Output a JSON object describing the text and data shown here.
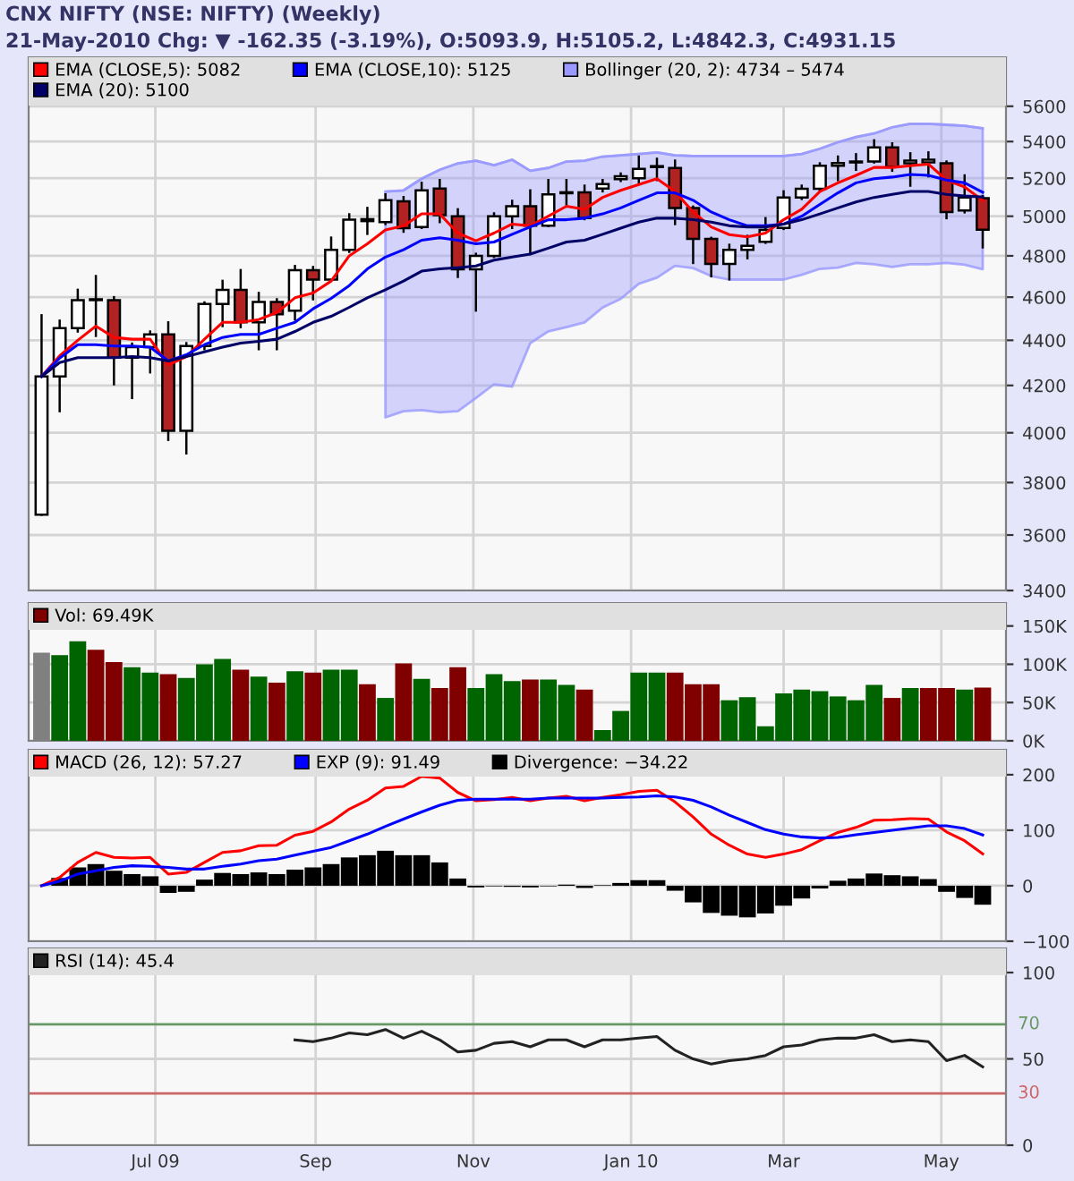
{
  "chart_data": [
    {
      "type": "candlestick",
      "title": "CNX NIFTY (NSE: NIFTY) (Weekly)",
      "subtitle": "21-May-2010 Chg: ▼ -162.35 (-3.19%), O:5093.9, H:5105.2, L:4842.3, C:4931.15",
      "x": [
        "2009-05-18",
        "2009-05-25",
        "2009-06-01",
        "2009-06-08",
        "2009-06-15",
        "2009-06-22",
        "2009-06-29",
        "2009-07-06",
        "2009-07-13",
        "2009-07-20",
        "2009-07-27",
        "2009-08-03",
        "2009-08-10",
        "2009-08-17",
        "2009-08-24",
        "2009-08-31",
        "2009-09-07",
        "2009-09-14",
        "2009-09-21",
        "2009-09-28",
        "2009-10-05",
        "2009-10-12",
        "2009-10-19",
        "2009-10-26",
        "2009-11-02",
        "2009-11-09",
        "2009-11-16",
        "2009-11-23",
        "2009-11-30",
        "2009-12-07",
        "2009-12-14",
        "2009-12-21",
        "2009-12-28",
        "2010-01-04",
        "2010-01-11",
        "2010-01-18",
        "2010-01-25",
        "2010-02-01",
        "2010-02-08",
        "2010-02-15",
        "2010-02-22",
        "2010-03-01",
        "2010-03-08",
        "2010-03-15",
        "2010-03-22",
        "2010-03-29",
        "2010-04-05",
        "2010-04-12",
        "2010-04-19",
        "2010-04-26",
        "2010-05-03",
        "2010-05-10",
        "2010-05-17"
      ],
      "ohlc": [
        [
          3676,
          4515,
          3676,
          4239
        ],
        [
          4239,
          4490,
          4090,
          4455
        ],
        [
          4455,
          4635,
          4440,
          4586
        ],
        [
          4586,
          4701,
          4420,
          4590
        ],
        [
          4586,
          4600,
          4205,
          4322
        ],
        [
          4322,
          4385,
          4146,
          4369
        ],
        [
          4369,
          4440,
          4257,
          4427
        ],
        [
          4427,
          4482,
          3971,
          4008
        ],
        [
          4008,
          4387,
          3916,
          4374
        ],
        [
          4374,
          4575,
          4360,
          4568
        ],
        [
          4568,
          4678,
          4465,
          4635
        ],
        [
          4635,
          4730,
          4460,
          4482
        ],
        [
          4482,
          4620,
          4360,
          4577
        ],
        [
          4577,
          4590,
          4360,
          4520
        ],
        [
          4536,
          4750,
          4495,
          4730
        ],
        [
          4730,
          4745,
          4590,
          4684
        ],
        [
          4684,
          4891,
          4680,
          4830
        ],
        [
          4830,
          5010,
          4820,
          4982
        ],
        [
          4985,
          5043,
          4910,
          4975
        ],
        [
          4970,
          5114,
          4960,
          5083
        ],
        [
          5077,
          5100,
          4921,
          4939
        ],
        [
          4945,
          5175,
          4940,
          5135
        ],
        [
          5145,
          5190,
          4970,
          5006
        ],
        [
          5000,
          5036,
          4697,
          4734
        ],
        [
          4734,
          4810,
          4537,
          4800
        ],
        [
          4800,
          5015,
          4795,
          5000
        ],
        [
          5000,
          5080,
          4940,
          5052
        ],
        [
          5052,
          5135,
          4809,
          4951
        ],
        [
          4951,
          5190,
          4950,
          5114
        ],
        [
          5120,
          5190,
          5050,
          5125
        ],
        [
          5125,
          5160,
          4985,
          4990
        ],
        [
          5145,
          5190,
          5130,
          5168
        ],
        [
          5195,
          5225,
          5185,
          5210
        ],
        [
          5200,
          5317,
          5175,
          5250
        ],
        [
          5260,
          5305,
          5190,
          5265
        ],
        [
          5255,
          5295,
          4960,
          5043
        ],
        [
          5043,
          5050,
          4765,
          4885
        ],
        [
          4885,
          4890,
          4700,
          4760
        ],
        [
          4760,
          4855,
          4685,
          4830
        ],
        [
          4830,
          4900,
          4788,
          4850
        ],
        [
          4870,
          4990,
          4865,
          4930
        ],
        [
          4940,
          5130,
          4935,
          5098
        ],
        [
          5098,
          5160,
          5090,
          5143
        ],
        [
          5143,
          5280,
          5135,
          5267
        ],
        [
          5267,
          5317,
          5190,
          5282
        ],
        [
          5285,
          5330,
          5245,
          5290
        ],
        [
          5290,
          5407,
          5285,
          5367
        ],
        [
          5367,
          5390,
          5240,
          5262
        ],
        [
          5280,
          5335,
          5160,
          5295
        ],
        [
          5285,
          5340,
          5210,
          5300
        ],
        [
          5280,
          5290,
          4990,
          5022
        ],
        [
          5030,
          5215,
          5020,
          5098
        ],
        [
          5093.9,
          5105.2,
          4842.3,
          4931.15
        ]
      ],
      "colors": [
        "#ffffff",
        "#ffffff",
        "#ffffff",
        "#ffffff",
        "#b22222",
        "#ffffff",
        "#ffffff",
        "#b22222",
        "#ffffff",
        "#ffffff",
        "#ffffff",
        "#b22222",
        "#ffffff",
        "#b22222",
        "#ffffff",
        "#b22222",
        "#ffffff",
        "#ffffff",
        "#b22222",
        "#ffffff",
        "#b22222",
        "#ffffff",
        "#b22222",
        "#b22222",
        "#ffffff",
        "#ffffff",
        "#ffffff",
        "#b22222",
        "#ffffff",
        "#ffffff",
        "#b22222",
        "#ffffff",
        "#ffffff",
        "#ffffff",
        "#ffffff",
        "#b22222",
        "#b22222",
        "#b22222",
        "#ffffff",
        "#ffffff",
        "#ffffff",
        "#ffffff",
        "#ffffff",
        "#ffffff",
        "#ffffff",
        "#ffffff",
        "#ffffff",
        "#b22222",
        "#ffffff",
        "#ffffff",
        "#b22222",
        "#ffffff",
        "#b22222"
      ],
      "series": [
        {
          "name": "EMA (CLOSE,5): 5082",
          "type": "line",
          "color": "#ff0000",
          "values": [
            4239,
            4330,
            4400,
            4465,
            4413,
            4405,
            4405,
            4290,
            4327,
            4405,
            4482,
            4482,
            4495,
            4528,
            4597,
            4620,
            4677,
            4800,
            4860,
            4930,
            4951,
            5012,
            5012,
            4914,
            4875,
            4914,
            4960,
            4951,
            5000,
            5052,
            5036,
            5098,
            5135,
            5166,
            5197,
            5129,
            5022,
            4945,
            4906,
            4895,
            4914,
            4982,
            5036,
            5129,
            5175,
            5215,
            5258,
            5258,
            5267,
            5276,
            5190,
            5153,
            5082
          ]
        },
        {
          "name": "EMA (CLOSE,10): 5125",
          "type": "line",
          "color": "#0000ff",
          "values": [
            4239,
            4320,
            4380,
            4380,
            4374,
            4374,
            4369,
            4307,
            4335,
            4380,
            4413,
            4427,
            4427,
            4455,
            4482,
            4545,
            4594,
            4655,
            4736,
            4794,
            4830,
            4878,
            4890,
            4878,
            4860,
            4869,
            4908,
            4945,
            4982,
            4982,
            4990,
            5012,
            5043,
            5083,
            5122,
            5122,
            5083,
            5022,
            4982,
            4951,
            4951,
            4960,
            5000,
            5061,
            5122,
            5175,
            5197,
            5206,
            5220,
            5215,
            5190,
            5175,
            5125
          ]
        },
        {
          "name": "Bollinger (20, 2): 4734 – 5474",
          "type": "line",
          "color": "#9999ff",
          "lower": [
            null,
            null,
            null,
            null,
            null,
            null,
            null,
            null,
            null,
            null,
            null,
            null,
            null,
            null,
            null,
            null,
            null,
            null,
            null,
            4064,
            4090,
            4095,
            4085,
            4090,
            4146,
            4205,
            4195,
            4387,
            4441,
            4460,
            4482,
            4551,
            4592,
            4664,
            4693,
            4751,
            4740,
            4701,
            4684,
            4684,
            4684,
            4684,
            4707,
            4736,
            4742,
            4765,
            4759,
            4745,
            4759,
            4759,
            4765,
            4756,
            4734
          ],
          "values": [
            null,
            null,
            null,
            null,
            null,
            null,
            null,
            null,
            null,
            null,
            null,
            null,
            null,
            null,
            null,
            null,
            null,
            null,
            null,
            5129,
            5135,
            5197,
            5245,
            5280,
            5294,
            5270,
            5300,
            5240,
            5255,
            5290,
            5294,
            5317,
            5324,
            5331,
            5340,
            5324,
            5320,
            5320,
            5320,
            5320,
            5320,
            5320,
            5331,
            5360,
            5396,
            5425,
            5445,
            5480,
            5500,
            5500,
            5494,
            5488,
            5474
          ],
          "upper": [
            null,
            null,
            null,
            null,
            null,
            null,
            null,
            null,
            null,
            null,
            null,
            null,
            null,
            null,
            null,
            null,
            null,
            null,
            null,
            5129,
            5135,
            5197,
            5245,
            5280,
            5294,
            5270,
            5300,
            5240,
            5255,
            5290,
            5294,
            5317,
            5324,
            5331,
            5340,
            5324,
            5320,
            5320,
            5320,
            5320,
            5320,
            5320,
            5331,
            5360,
            5396,
            5425,
            5445,
            5480,
            5500,
            5500,
            5494,
            5488,
            5474
          ]
        },
        {
          "name": "EMA (20): 5100",
          "type": "line",
          "color": "#000066",
          "values": [
            4239,
            4300,
            4322,
            4322,
            4322,
            4327,
            4322,
            4307,
            4327,
            4348,
            4369,
            4387,
            4395,
            4405,
            4440,
            4482,
            4510,
            4552,
            4597,
            4635,
            4677,
            4725,
            4736,
            4742,
            4750,
            4779,
            4794,
            4809,
            4838,
            4869,
            4878,
            4908,
            4939,
            4970,
            4990,
            4990,
            4982,
            4970,
            4951,
            4945,
            4945,
            4960,
            4982,
            5012,
            5043,
            5074,
            5098,
            5114,
            5129,
            5129,
            5114,
            5105,
            5100
          ]
        }
      ],
      "log": true,
      "ylim": [
        3400,
        5890
      ],
      "yticks": [
        3400,
        3600,
        3800,
        4000,
        4200,
        4400,
        4600,
        4800,
        5000,
        5200,
        5400,
        5600
      ],
      "xlim": [
        "2009-05-13",
        "2010-05-26"
      ],
      "xticks": [
        {
          "value": "2009-07-01",
          "label": null
        },
        {
          "value": "2009-09-01",
          "label": null
        },
        {
          "value": "2009-11-01",
          "label": null
        },
        {
          "value": "2010-01-01",
          "label": null
        },
        {
          "value": "2010-03-01",
          "label": null
        },
        {
          "value": "2010-05-01",
          "label": null
        }
      ],
      "grid": true,
      "legend": "top",
      "tick_labels": "y"
    },
    {
      "type": "bar",
      "x": [
        "2009-05-18",
        "2009-05-25",
        "2009-06-01",
        "2009-06-08",
        "2009-06-15",
        "2009-06-22",
        "2009-06-29",
        "2009-07-06",
        "2009-07-13",
        "2009-07-20",
        "2009-07-27",
        "2009-08-03",
        "2009-08-10",
        "2009-08-17",
        "2009-08-24",
        "2009-08-31",
        "2009-09-07",
        "2009-09-14",
        "2009-09-21",
        "2009-09-28",
        "2009-10-05",
        "2009-10-12",
        "2009-10-19",
        "2009-10-26",
        "2009-11-02",
        "2009-11-09",
        "2009-11-16",
        "2009-11-23",
        "2009-11-30",
        "2009-12-07",
        "2009-12-14",
        "2009-12-21",
        "2009-12-28",
        "2010-01-04",
        "2010-01-11",
        "2010-01-18",
        "2010-01-25",
        "2010-02-01",
        "2010-02-08",
        "2010-02-15",
        "2010-02-22",
        "2010-03-01",
        "2010-03-08",
        "2010-03-15",
        "2010-03-22",
        "2010-03-29",
        "2010-04-05",
        "2010-04-12",
        "2010-04-19",
        "2010-04-26",
        "2010-05-03",
        "2010-05-10",
        "2010-05-17"
      ],
      "series": [
        {
          "name": "Vol: 69.49K",
          "color": "#800000",
          "values": [
            115000,
            112000,
            130000,
            119000,
            103000,
            96000,
            89000,
            87000,
            82000,
            100000,
            107000,
            93000,
            84000,
            76000,
            91000,
            89000,
            93000,
            93000,
            74000,
            56000,
            101000,
            81000,
            69000,
            96000,
            69000,
            87000,
            78000,
            80000,
            80000,
            73000,
            67000,
            14000,
            39000,
            89000,
            89000,
            89000,
            74000,
            74000,
            53000,
            57000,
            19000,
            62000,
            67000,
            65000,
            58000,
            53000,
            73000,
            56000,
            69000,
            69000,
            69000,
            67000,
            69490
          ],
          "colors": [
            "#808080",
            "#006400",
            "#006400",
            "#800000",
            "#800000",
            "#006400",
            "#006400",
            "#800000",
            "#006400",
            "#006400",
            "#006400",
            "#800000",
            "#006400",
            "#800000",
            "#006400",
            "#800000",
            "#006400",
            "#006400",
            "#800000",
            "#006400",
            "#800000",
            "#006400",
            "#800000",
            "#800000",
            "#006400",
            "#006400",
            "#006400",
            "#800000",
            "#006400",
            "#006400",
            "#800000",
            "#006400",
            "#006400",
            "#006400",
            "#006400",
            "#800000",
            "#800000",
            "#800000",
            "#006400",
            "#006400",
            "#006400",
            "#006400",
            "#006400",
            "#006400",
            "#006400",
            "#006400",
            "#006400",
            "#800000",
            "#006400",
            "#800000",
            "#800000",
            "#006400",
            "#800000"
          ]
        }
      ],
      "ylim": [
        0,
        180000
      ],
      "yticks": [
        {
          "value": 0,
          "label": "0K"
        },
        {
          "value": 50000,
          "label": "50K"
        },
        {
          "value": 100000,
          "label": "100K"
        },
        {
          "value": 150000,
          "label": "150K"
        }
      ],
      "xlim": [
        "2009-05-13",
        "2010-05-26"
      ],
      "xticks": [
        {
          "value": "2009-07-01",
          "label": null
        },
        {
          "value": "2009-09-01",
          "label": null
        },
        {
          "value": "2009-11-01",
          "label": null
        },
        {
          "value": "2010-01-01",
          "label": null
        },
        {
          "value": "2010-03-01",
          "label": null
        },
        {
          "value": "2010-05-01",
          "label": null
        }
      ],
      "grid": true,
      "legend": "top",
      "tick_labels": "y"
    },
    {
      "type": "line",
      "x": [
        "2009-05-18",
        "2009-05-25",
        "2009-06-01",
        "2009-06-08",
        "2009-06-15",
        "2009-06-22",
        "2009-06-29",
        "2009-07-06",
        "2009-07-13",
        "2009-07-20",
        "2009-07-27",
        "2009-08-03",
        "2009-08-10",
        "2009-08-17",
        "2009-08-24",
        "2009-08-31",
        "2009-09-07",
        "2009-09-14",
        "2009-09-21",
        "2009-09-28",
        "2009-10-05",
        "2009-10-12",
        "2009-10-19",
        "2009-10-26",
        "2009-11-02",
        "2009-11-09",
        "2009-11-16",
        "2009-11-23",
        "2009-11-30",
        "2009-12-07",
        "2009-12-14",
        "2009-12-21",
        "2009-12-28",
        "2010-01-04",
        "2010-01-11",
        "2010-01-18",
        "2010-01-25",
        "2010-02-01",
        "2010-02-08",
        "2010-02-15",
        "2010-02-22",
        "2010-03-01",
        "2010-03-08",
        "2010-03-15",
        "2010-03-22",
        "2010-03-29",
        "2010-04-05",
        "2010-04-12",
        "2010-04-19",
        "2010-04-26",
        "2010-05-03",
        "2010-05-10",
        "2010-05-17"
      ],
      "series": [
        {
          "name": "MACD (26, 12): 57.27",
          "type": "line",
          "color": "#ff0000",
          "values": [
            0,
            15,
            42,
            60,
            51,
            50,
            51,
            21,
            24,
            42,
            60,
            63,
            72,
            73,
            91,
            98,
            115,
            138,
            154,
            176,
            179,
            197,
            194,
            168,
            153,
            155,
            159,
            153,
            158,
            161,
            153,
            159,
            164,
            170,
            172,
            151,
            124,
            93,
            73,
            57,
            51,
            57,
            65,
            81,
            96,
            105,
            118,
            119,
            121,
            120,
            97,
            81,
            57.27
          ]
        },
        {
          "name": "EXP (9): 91.49",
          "type": "line",
          "color": "#0000ff",
          "values": [
            0,
            8,
            21,
            27,
            33,
            36,
            35,
            33,
            30,
            30,
            35,
            39,
            45,
            48,
            55,
            62,
            69,
            81,
            93,
            107,
            120,
            133,
            145,
            154,
            156,
            156,
            156,
            156,
            158,
            158,
            158,
            158,
            159,
            160,
            162,
            160,
            154,
            142,
            127,
            114,
            101,
            93,
            88,
            86,
            87,
            92,
            96,
            100,
            104,
            108,
            108,
            103,
            91.49
          ]
        },
        {
          "name": "Divergence: −34.22",
          "type": "bar",
          "color": "#000000",
          "values": [
            null,
            14,
            33,
            39,
            27,
            21,
            17,
            -13,
            -11,
            11,
            23,
            21,
            24,
            21,
            29,
            33,
            39,
            51,
            55,
            63,
            55,
            55,
            42,
            13,
            -3,
            -1,
            -2,
            -3,
            -1,
            2,
            -4,
            1,
            5,
            10,
            10,
            -9,
            -30,
            -49,
            -54,
            -57,
            -50,
            -36,
            -23,
            -5,
            9,
            13,
            22,
            19,
            17,
            12,
            -11,
            -22,
            -34.22
          ]
        }
      ],
      "ylim": [
        -100,
        245
      ],
      "yticks": [
        {
          "value": -100,
          "label": "−100"
        },
        0,
        100,
        200
      ],
      "xlim": [
        "2009-05-13",
        "2010-05-26"
      ],
      "xticks": [
        {
          "value": "2009-07-01",
          "label": null
        },
        {
          "value": "2009-09-01",
          "label": null
        },
        {
          "value": "2009-11-01",
          "label": null
        },
        {
          "value": "2010-01-01",
          "label": null
        },
        {
          "value": "2010-03-01",
          "label": null
        },
        {
          "value": "2010-05-01",
          "label": null
        }
      ],
      "grid": true,
      "legend": "top",
      "tick_labels": "y"
    },
    {
      "type": "line",
      "series": [
        {
          "name": "RSI (14): 45.4",
          "type": "line",
          "color": "#222222",
          "x": [
            "2009-08-24",
            "2009-08-31",
            "2009-09-07",
            "2009-09-14",
            "2009-09-21",
            "2009-09-28",
            "2009-10-05",
            "2009-10-12",
            "2009-10-19",
            "2009-10-26",
            "2009-11-02",
            "2009-11-09",
            "2009-11-16",
            "2009-11-23",
            "2009-11-30",
            "2009-12-07",
            "2009-12-14",
            "2009-12-21",
            "2009-12-28",
            "2010-01-04",
            "2010-01-11",
            "2010-01-18",
            "2010-01-25",
            "2010-02-01",
            "2010-02-08",
            "2010-02-15",
            "2010-02-22",
            "2010-03-01",
            "2010-03-08",
            "2010-03-15",
            "2010-03-22",
            "2010-03-29",
            "2010-04-05",
            "2010-04-12",
            "2010-04-19",
            "2010-04-26",
            "2010-05-03",
            "2010-05-10",
            "2010-05-17"
          ],
          "values": [
            61,
            60,
            62,
            65,
            64,
            67,
            62,
            66,
            61,
            54,
            55,
            59,
            60,
            57,
            61,
            61,
            57,
            61,
            61,
            62,
            63,
            55,
            50,
            47,
            49,
            50,
            52,
            57,
            58,
            61,
            62,
            62,
            64,
            60,
            61,
            60,
            49,
            52,
            45.4
          ]
        }
      ],
      "ref_lines": [
        {
          "axis": "y",
          "value": 70,
          "label": "70",
          "color": "#669966"
        },
        {
          "axis": "y",
          "value": 30,
          "label": "30",
          "color": "#cc6666"
        }
      ],
      "ylim": [
        0,
        114
      ],
      "yticks": [
        0,
        50,
        100
      ],
      "xlim": [
        "2009-05-13",
        "2010-05-26"
      ],
      "xticks": [
        {
          "value": "2009-07-01",
          "label": "Jul 09"
        },
        {
          "value": "2009-09-01",
          "label": "Sep"
        },
        {
          "value": "2009-11-01",
          "label": "Nov"
        },
        {
          "value": "2010-01-01",
          "label": "Jan 10"
        },
        {
          "value": "2010-03-01",
          "label": "Mar"
        },
        {
          "value": "2010-05-01",
          "label": "May"
        }
      ],
      "grid": true,
      "legend": "top"
    }
  ]
}
